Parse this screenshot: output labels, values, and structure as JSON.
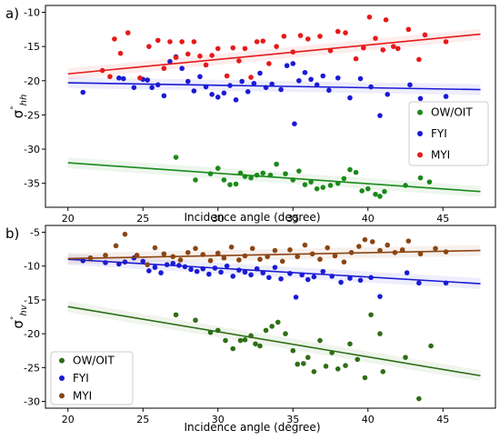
{
  "chart_data": [
    {
      "panel_label": "a)",
      "type": "scatter",
      "xlabel": "Incidence angle (degree)",
      "ylabel": "σ°hh",
      "xlim": [
        18.5,
        48.5
      ],
      "ylim": [
        -38.5,
        -9
      ],
      "xticks": [
        20,
        25,
        30,
        35,
        40,
        45
      ],
      "yticks": [
        -10,
        -15,
        -20,
        -25,
        -30,
        -35
      ],
      "legend_position": "center-right",
      "series": [
        {
          "name": "OW/OIT",
          "color": "#1a8a1a",
          "fit": [
            [
              20,
              -32.0
            ],
            [
              47.5,
              -36.2
            ]
          ],
          "points": [
            [
              27.2,
              -31.2
            ],
            [
              28.5,
              -34.5
            ],
            [
              29.5,
              -33.6
            ],
            [
              30.0,
              -32.8
            ],
            [
              30.4,
              -34.5
            ],
            [
              30.8,
              -35.2
            ],
            [
              31.2,
              -35.1
            ],
            [
              31.5,
              -33.5
            ],
            [
              31.8,
              -34.0
            ],
            [
              32.2,
              -34.2
            ],
            [
              32.6,
              -33.8
            ],
            [
              33.0,
              -33.5
            ],
            [
              33.5,
              -33.8
            ],
            [
              33.9,
              -32.2
            ],
            [
              34.5,
              -33.6
            ],
            [
              35.0,
              -34.5
            ],
            [
              35.4,
              -33.2
            ],
            [
              35.8,
              -35.2
            ],
            [
              36.2,
              -34.8
            ],
            [
              36.6,
              -35.8
            ],
            [
              37.0,
              -35.6
            ],
            [
              37.5,
              -35.3
            ],
            [
              38.0,
              -35.0
            ],
            [
              38.4,
              -34.3
            ],
            [
              38.8,
              -33.0
            ],
            [
              39.2,
              -33.4
            ],
            [
              39.6,
              -36.1
            ],
            [
              40.0,
              -35.8
            ],
            [
              40.5,
              -36.6
            ],
            [
              40.8,
              -36.9
            ],
            [
              41.1,
              -36.2
            ],
            [
              42.5,
              -35.3
            ],
            [
              43.5,
              -34.2
            ],
            [
              44.1,
              -34.8
            ]
          ]
        },
        {
          "name": "FYI",
          "color": "#1a1ad6",
          "fit": [
            [
              20,
              -20.3
            ],
            [
              47.5,
              -21.3
            ]
          ],
          "points": [
            [
              21.0,
              -21.7
            ],
            [
              23.4,
              -19.6
            ],
            [
              23.7,
              -19.7
            ],
            [
              24.4,
              -21.0
            ],
            [
              25.0,
              -19.8
            ],
            [
              25.3,
              -19.9
            ],
            [
              25.6,
              -21.0
            ],
            [
              26.0,
              -20.6
            ],
            [
              26.4,
              -22.2
            ],
            [
              26.8,
              -17.2
            ],
            [
              27.2,
              -16.5
            ],
            [
              27.6,
              -18.2
            ],
            [
              28.0,
              -20.1
            ],
            [
              28.4,
              -21.5
            ],
            [
              28.8,
              -19.4
            ],
            [
              29.2,
              -20.9
            ],
            [
              29.6,
              -22.0
            ],
            [
              30.0,
              -22.4
            ],
            [
              30.4,
              -21.8
            ],
            [
              30.8,
              -20.7
            ],
            [
              31.2,
              -22.8
            ],
            [
              31.6,
              -20.1
            ],
            [
              32.0,
              -21.6
            ],
            [
              32.4,
              -20.4
            ],
            [
              32.8,
              -18.9
            ],
            [
              33.2,
              -21.0
            ],
            [
              33.6,
              -20.5
            ],
            [
              34.2,
              -21.3
            ],
            [
              34.6,
              -17.8
            ],
            [
              35.0,
              -17.5
            ],
            [
              35.1,
              -26.3
            ],
            [
              35.4,
              -20.0
            ],
            [
              35.8,
              -18.8
            ],
            [
              36.2,
              -19.8
            ],
            [
              36.6,
              -20.6
            ],
            [
              37.0,
              -19.3
            ],
            [
              37.4,
              -21.4
            ],
            [
              38.0,
              -19.6
            ],
            [
              38.8,
              -22.5
            ],
            [
              39.5,
              -19.7
            ],
            [
              40.2,
              -20.9
            ],
            [
              40.8,
              -25.1
            ],
            [
              41.3,
              -22.0
            ],
            [
              42.8,
              -20.6
            ],
            [
              43.5,
              -22.6
            ],
            [
              45.2,
              -22.3
            ]
          ]
        },
        {
          "name": "MYI",
          "color": "#e51a1a",
          "fit": [
            [
              20,
              -19.0
            ],
            [
              47.5,
              -13.2
            ]
          ],
          "points": [
            [
              22.3,
              -18.5
            ],
            [
              22.8,
              -19.4
            ],
            [
              23.1,
              -13.9
            ],
            [
              23.5,
              -16.0
            ],
            [
              24.0,
              -13.0
            ],
            [
              24.8,
              -19.6
            ],
            [
              25.4,
              -15.0
            ],
            [
              26.0,
              -14.1
            ],
            [
              26.4,
              -18.2
            ],
            [
              26.8,
              -14.3
            ],
            [
              27.2,
              -16.6
            ],
            [
              27.6,
              -14.3
            ],
            [
              28.0,
              -16.1
            ],
            [
              28.4,
              -14.3
            ],
            [
              28.8,
              -16.4
            ],
            [
              29.2,
              -17.7
            ],
            [
              29.6,
              -16.3
            ],
            [
              30.0,
              -15.3
            ],
            [
              30.6,
              -19.3
            ],
            [
              31.0,
              -15.2
            ],
            [
              31.4,
              -17.1
            ],
            [
              31.8,
              -15.3
            ],
            [
              32.2,
              -19.5
            ],
            [
              32.6,
              -14.3
            ],
            [
              33.0,
              -14.2
            ],
            [
              33.4,
              -17.5
            ],
            [
              33.9,
              -15.0
            ],
            [
              34.4,
              -13.5
            ],
            [
              35.0,
              -15.8
            ],
            [
              35.5,
              -13.4
            ],
            [
              36.0,
              -13.9
            ],
            [
              36.8,
              -13.5
            ],
            [
              37.5,
              -15.6
            ],
            [
              38.0,
              -12.8
            ],
            [
              38.5,
              -13.0
            ],
            [
              39.2,
              -16.8
            ],
            [
              39.7,
              -15.2
            ],
            [
              40.1,
              -10.7
            ],
            [
              40.5,
              -13.8
            ],
            [
              41.0,
              -15.5
            ],
            [
              41.2,
              -11.1
            ],
            [
              41.7,
              -15.0
            ],
            [
              42.0,
              -15.3
            ],
            [
              42.7,
              -12.5
            ],
            [
              43.4,
              -16.9
            ],
            [
              43.8,
              -13.3
            ],
            [
              45.2,
              -14.3
            ]
          ]
        }
      ]
    },
    {
      "panel_label": "b)",
      "type": "scatter",
      "xlabel": "Incidence angle (degree)",
      "ylabel": "σ°hv",
      "xlim": [
        18.5,
        48.5
      ],
      "ylim": [
        -31,
        -4
      ],
      "xticks": [
        20,
        25,
        30,
        35,
        40,
        45
      ],
      "yticks": [
        -5,
        -10,
        -15,
        -20,
        -25,
        -30
      ],
      "legend_position": "bottom-left",
      "series": [
        {
          "name": "OW/OIT",
          "color": "#2e6e16",
          "fit": [
            [
              20,
              -16.0
            ],
            [
              47.5,
              -26.2
            ]
          ],
          "points": [
            [
              27.2,
              -17.2
            ],
            [
              28.5,
              -18.0
            ],
            [
              29.5,
              -19.8
            ],
            [
              30.0,
              -19.5
            ],
            [
              30.5,
              -21.0
            ],
            [
              31.0,
              -22.2
            ],
            [
              31.5,
              -21.0
            ],
            [
              31.8,
              -20.9
            ],
            [
              32.2,
              -20.3
            ],
            [
              32.5,
              -21.5
            ],
            [
              32.8,
              -21.8
            ],
            [
              33.2,
              -19.5
            ],
            [
              33.6,
              -18.9
            ],
            [
              34.0,
              -18.3
            ],
            [
              34.5,
              -20.0
            ],
            [
              35.0,
              -22.5
            ],
            [
              35.3,
              -24.5
            ],
            [
              35.7,
              -24.4
            ],
            [
              36.0,
              -23.5
            ],
            [
              36.4,
              -25.6
            ],
            [
              36.8,
              -21.0
            ],
            [
              37.2,
              -24.8
            ],
            [
              37.6,
              -22.8
            ],
            [
              38.0,
              -25.2
            ],
            [
              38.5,
              -24.7
            ],
            [
              38.8,
              -21.5
            ],
            [
              39.3,
              -23.8
            ],
            [
              39.8,
              -26.5
            ],
            [
              40.2,
              -17.2
            ],
            [
              40.8,
              -20.0
            ],
            [
              41.0,
              -25.6
            ],
            [
              42.5,
              -23.5
            ],
            [
              43.4,
              -29.6
            ],
            [
              44.2,
              -21.8
            ]
          ]
        },
        {
          "name": "FYI",
          "color": "#1a1ad6",
          "fit": [
            [
              20,
              -9.0
            ],
            [
              47.5,
              -12.6
            ]
          ],
          "points": [
            [
              21.0,
              -9.2
            ],
            [
              22.5,
              -9.5
            ],
            [
              23.4,
              -9.7
            ],
            [
              23.8,
              -9.4
            ],
            [
              24.4,
              -8.8
            ],
            [
              25.0,
              -9.3
            ],
            [
              25.4,
              -10.7
            ],
            [
              25.8,
              -10.2
            ],
            [
              26.2,
              -11.0
            ],
            [
              26.6,
              -9.8
            ],
            [
              27.0,
              -9.6
            ],
            [
              27.4,
              -9.9
            ],
            [
              27.8,
              -10.1
            ],
            [
              28.2,
              -10.5
            ],
            [
              28.6,
              -10.8
            ],
            [
              29.0,
              -10.4
            ],
            [
              29.4,
              -11.2
            ],
            [
              29.8,
              -10.3
            ],
            [
              30.2,
              -10.9
            ],
            [
              30.6,
              -10.0
            ],
            [
              31.0,
              -11.5
            ],
            [
              31.4,
              -10.6
            ],
            [
              31.8,
              -10.9
            ],
            [
              32.2,
              -11.3
            ],
            [
              32.6,
              -10.4
            ],
            [
              33.0,
              -11.0
            ],
            [
              33.4,
              -11.7
            ],
            [
              33.8,
              -10.2
            ],
            [
              34.2,
              -11.9
            ],
            [
              34.8,
              -11.1
            ],
            [
              35.2,
              -14.6
            ],
            [
              35.6,
              -11.3
            ],
            [
              36.0,
              -12.0
            ],
            [
              36.4,
              -11.6
            ],
            [
              37.0,
              -10.8
            ],
            [
              37.6,
              -11.5
            ],
            [
              38.2,
              -12.4
            ],
            [
              38.8,
              -11.8
            ],
            [
              39.5,
              -12.1
            ],
            [
              40.2,
              -11.7
            ],
            [
              40.8,
              -14.5
            ],
            [
              42.6,
              -11.0
            ],
            [
              43.4,
              -12.5
            ],
            [
              45.2,
              -12.5
            ]
          ]
        },
        {
          "name": "MYI",
          "color": "#8b4513",
          "fit": [
            [
              20,
              -8.9
            ],
            [
              47.5,
              -7.7
            ]
          ],
          "points": [
            [
              21.5,
              -8.8
            ],
            [
              22.5,
              -8.4
            ],
            [
              23.2,
              -7.0
            ],
            [
              23.8,
              -5.3
            ],
            [
              24.6,
              -8.4
            ],
            [
              25.3,
              -9.8
            ],
            [
              25.8,
              -7.3
            ],
            [
              26.4,
              -8.2
            ],
            [
              27.0,
              -8.6
            ],
            [
              27.5,
              -9.1
            ],
            [
              28.0,
              -8.0
            ],
            [
              28.5,
              -7.4
            ],
            [
              29.0,
              -8.3
            ],
            [
              29.5,
              -9.2
            ],
            [
              30.0,
              -8.1
            ],
            [
              30.4,
              -8.8
            ],
            [
              30.9,
              -7.2
            ],
            [
              31.4,
              -9.1
            ],
            [
              31.8,
              -8.5
            ],
            [
              32.3,
              -7.4
            ],
            [
              32.8,
              -9.0
            ],
            [
              33.3,
              -8.6
            ],
            [
              33.8,
              -7.7
            ],
            [
              34.3,
              -9.3
            ],
            [
              34.8,
              -7.6
            ],
            [
              35.3,
              -8.6
            ],
            [
              35.8,
              -6.9
            ],
            [
              36.3,
              -8.2
            ],
            [
              36.8,
              -9.0
            ],
            [
              37.3,
              -7.3
            ],
            [
              37.8,
              -8.5
            ],
            [
              38.4,
              -9.4
            ],
            [
              38.9,
              -8.0
            ],
            [
              39.4,
              -7.1
            ],
            [
              39.8,
              -6.1
            ],
            [
              40.3,
              -6.4
            ],
            [
              40.8,
              -7.7
            ],
            [
              41.3,
              -6.9
            ],
            [
              41.8,
              -8.0
            ],
            [
              42.3,
              -7.6
            ],
            [
              42.7,
              -6.3
            ],
            [
              43.5,
              -8.2
            ],
            [
              44.5,
              -7.4
            ],
            [
              45.2,
              -7.9
            ]
          ]
        }
      ]
    }
  ]
}
